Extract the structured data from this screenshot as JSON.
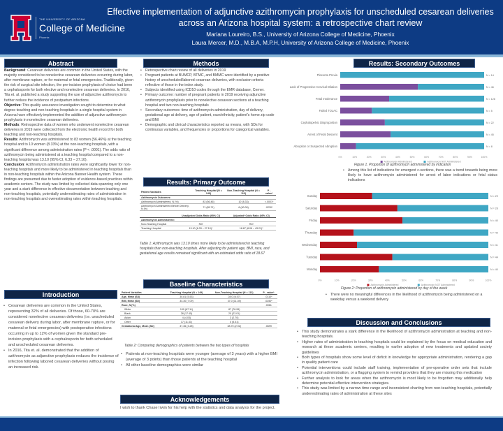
{
  "header": {
    "university": "THE UNIVERSITY OF ARIZONA",
    "college": "College of Medicine",
    "campus": "Phoenix",
    "title": "Effective implementation of adjunctive azithromycin prophylaxis for unscheduled cesarean deliveries across an Arizona hospital system: a retrospective chart review",
    "author1": "Mariana Loureiro, B.S., University of Arizona College of Medicine, Phoenix",
    "author2": "Laura Mercer, M.D., M.B.A, M.P.H, University of Arizona College of Medicine, Phoenix"
  },
  "abstract": {
    "heading": "Abstract",
    "background_label": "Background",
    "background": ": Cesarean deliveries are common in the United States, with the majority considered to be nonelective cesarean deliveries occurring during labor, after membrane rupture, or for maternal or fetal emergencies. Traditionally, given the risk of surgical site infection, the pre-incision prophylaxis of choice had been a cephalosporin for both elective and nonelective cesarean deliveries. In 2016, Tita et. al. published a study supporting the use of adjunctive azithromycin to further reduce the incidence of postpartum infections.",
    "objective_label": "Objective",
    "objective": ": This quality assurance investigation sought to determine to what degree teaching and non-teaching hospitals in a single hospital system in Arizona have effectively implemented the addition of adjunctive azithromycin prophylaxis in nonelective cesarean deliveries.",
    "methods_label": "Methods",
    "methods": ": Retrospective data of women who underwent nonelective cesarean deliveries in 2019 were collected from the electronic health record for both teaching and non-teaching hospitals.",
    "results_label": "Results",
    "results": ": Azithromycin was administered to 83 women (56.46%) at the teaching hospital and to 10 women (8.33%) at the non-teaching hospitals, with a significant difference among administration rates (P < .0001). The odds ratio of azithromycin being administered at a teaching hospital compared to a non-teaching hospital was 13.10 (95% CI, 6.33 – 27.10).",
    "conclusion_label": "Conclusion",
    "conclusion": ": Azithromycin administration rates were significantly lower for non-teaching hospitals and more likely to be administered in teaching hospitals than in non-teaching hospitals within the Arizona Banner Health system. These findings are presumed due to faster adoption of evidence-based practices within academic centers. The study was limited by collected data spanning only one year and a stark difference in effective documentation between teaching and non-teaching hospitals, potentially underestimating rates of administration in non-teaching hospitals and overestimating rates within teaching hospitals."
  },
  "introduction": {
    "heading": "Introduction",
    "bullets": [
      "Cesarean deliveries are common in the United States, representing 32% of all deliveries. Of those, 60-70% are considered nonelective cesarean deliveries (i.e. unscheduled cesarean delivery during labor, after membrane rupture, or for maternal or fetal emergencies) with postoperative infections occurring in up to 12% of women given the standard pre-incision prophylaxis with a cephalosporin for both scheduled and unscheduled cesarean deliveries.",
      "In 2016, Tita et. al. demonstrated that the addition of azithromycin as adjunctive prophylaxis reduces the incidence of infection following labored cesarean deliveries without posing an increased risk."
    ]
  },
  "methods": {
    "heading": "Methods",
    "bullets": [
      "Retrospective chart review of all deliveries in 2019",
      "Pregnant patients at BUMCP, BTMC, and BMMC were identified by a positive history of unscheduled/labored cesarean deliveries, with exclusion criteria reflective of those in the index study.",
      "Subjects identified using ICD10 codes through the EMR database, Cerner.",
      "Primary outcome: number of pregnant patients in 2019 receiving adjunctive azithromycin prophylaxis prior to nonelective cesarean sections at a teaching hospital and two non-teaching hospitals",
      "Secondary outcomes: time of azithromycin administration, day of delivery, gestational age at delivery, age of patient, race/ethnicity, patient's home zip code and BMI",
      "Demographic and clinical characteristics reported as means, with SDs for continuous variables, and frequencies or proportions for categorical variables."
    ]
  },
  "primary": {
    "heading": "Results: Primary Outcome",
    "table1": {
      "headers": [
        "Patient Variables",
        "Teaching Hospital (N = 149)",
        "Non-Teaching Hospital (N = 113)",
        "P - value*"
      ],
      "section": "Azithromycin Outcomes:",
      "rows": [
        [
          "Azithromycin Administered, N (%)",
          "83 (56.46)",
          "10 (8.33)",
          "<.0001*"
        ],
        [
          "Azithromycin Administered Before Delivery, N (%)",
          "71 (85.71)",
          "6 (60.00)",
          ".0230*"
        ]
      ]
    },
    "table2": {
      "headers": [
        "",
        "Unadjusted Odds Ratio (95% CI)",
        "Adjusted* Odds Ratio (95% CI)"
      ],
      "section": "Azithromycin Administered:",
      "rows": [
        [
          "Non-Teaching Hospital",
          "Ref",
          "Ref"
        ],
        [
          "Teaching Hospital",
          "13.10 (6.33 – 27.10)*",
          "18.67 (8.06 – 43.21)*"
        ]
      ]
    },
    "caption": "Table 1: Azithromycin was 13.10 times more likely to be administered in teaching hospitals than non-teaching hospitals. After adjusting for patient age, BMI, race, and gestational age results remained significant with an estimated odds ratio of 18.67"
  },
  "baseline": {
    "heading": "Baseline Characteristics",
    "headers": [
      "Patient Variables",
      "Teaching Hospital (N = 149)",
      "Non-Teaching Hospital (N = 113)",
      "P - value*"
    ],
    "rows": [
      [
        "Age, Mean (SD)",
        "30.81 (5.53)",
        "28.0 (6.07)",
        ".0110*",
        true
      ],
      [
        "BMI, Mean (SD)",
        "34.30 (7.09)",
        "37.0 (11.39)",
        ".0250*",
        true
      ],
      [
        "Race, N (%)",
        "",
        "",
        ".0061",
        true
      ],
      [
        "White",
        "100 (67.11)",
        "87 (76.99)",
        "",
        false
      ],
      [
        "Black",
        "28 (17.45)",
        "20 (23.01)",
        "",
        false
      ],
      [
        "Asian",
        "4 (4.03)",
        "3 (2.70)",
        "",
        false
      ],
      [
        "Other",
        "17 (11.41)",
        "4 (5.41)",
        "",
        false
      ],
      [
        "Gestational Age, Mean (SD)",
        "37.36 (3.28)",
        "38.70 (2.92)",
        ".0699",
        true
      ]
    ],
    "caption": "Table 2: Comparing demographics of patients between the two types of hospitals",
    "bullets": [
      "Patients at non-teaching hospitals were younger (average of 3 years) with a higher BMI (average of 3 points) than those patients at the teaching hospital",
      "All other baseline demographics were similar"
    ]
  },
  "acknowledgements": {
    "heading": "Acknowledgements",
    "text": "I wish to thank Chase Irwin for his help with the statistics and data analysis for the project."
  },
  "secondary": {
    "heading": "Results: Secondary Outcomes",
    "caption1": "Figure 1. Proportion of azithromycin administered by indication",
    "bullet1": "Among this list of indications for emergent c-sections, there was a trend towards being more likely to have azithromycin administered for arrest of labor indications or fetal status indications",
    "caption2": "Figure 2: Proportion of azithromycin administered by day of the week",
    "bullet2": "There were no meaningful differences in the likelihood of azithromycin being administered on a weekday versus a weekend delivery"
  },
  "discussion": {
    "heading": "Discussion and Conclusions",
    "bullets": [
      "This study demonstrates a stark difference in the likelihood of azithromycin administration at teaching and non-teaching hospitals.",
      "Higher rates of administration in teaching hospitals could be explained by the focus on medical education and research at these academic centers, resulting in earlier adoption of new treatments and updated society guidelines",
      "Both types of hospitals show some level of deficit in knowledge for appropriate administration, rendering a gap in quality patient care",
      "Potential interventions could include staff training, implementation of pre-operative order sets that include azithromycin administration, or a flagging system to remind providers that they are missing this medication",
      "Further analysis to look for areas when the azithromycin is most likely to be forgotten may additionally help determine potential effective intervention strategies.",
      "This study was limited by a narrow time range and inconsistent charting from non-teaching hospitals, potentially underestimating rates of administration at these sites"
    ]
  },
  "chart_data": [
    {
      "type": "bar",
      "orientation": "horizontal-stacked-100",
      "categories": [
        "Placenta Previa",
        "Lack of Progressive Cervical Dilation",
        "Fetal Intolerance",
        "Failed TOLAC",
        "Cephalopelvic Disproportion",
        "Arrest of Fetal Descent",
        "Abruption or Suspected Abruption"
      ],
      "n_labels": [
        "N = 14",
        "N = 46",
        "N = 128",
        "N = 5",
        "N = 22",
        "N = 45",
        "N = 8"
      ],
      "series": [
        {
          "name": "Azithromycin Administered",
          "values": [
            0,
            54,
            34,
            22,
            31,
            35,
            11
          ],
          "color": "#7b4f9e"
        },
        {
          "name": "Azithromycin NOT Administered",
          "values": [
            100,
            46,
            66,
            78,
            69,
            65,
            89
          ],
          "color": "#3fa7c4"
        }
      ],
      "xticks": [
        "0%",
        "10%",
        "20%",
        "30%",
        "40%",
        "50%",
        "60%",
        "70%",
        "80%",
        "90%",
        "100%"
      ],
      "xlim": [
        0,
        100
      ],
      "legend": "bottom"
    },
    {
      "type": "bar",
      "orientation": "horizontal-stacked-100",
      "categories": [
        "Sunday",
        "Saturday",
        "Friday",
        "Thursday",
        "Wednesday",
        "Tuesday",
        "Monday"
      ],
      "n_labels": [
        "N = 29",
        "N = 28",
        "N = 40",
        "N = 40",
        "N = 41",
        "N = 44",
        "N = 40"
      ],
      "series": [
        {
          "name": "Azithromycin Administered",
          "values": [
            31,
            46,
            49,
            20,
            22,
            43,
            35
          ],
          "color": "#b5121b"
        },
        {
          "name": "Azithromycin NOT Administered",
          "values": [
            69,
            54,
            51,
            80,
            78,
            57,
            65
          ],
          "color": "#3fa7c4"
        }
      ],
      "xticks": [
        "0%",
        "10%",
        "20%",
        "30%",
        "40%",
        "50%",
        "60%",
        "70%",
        "80%",
        "90%",
        "100%"
      ],
      "xlim": [
        0,
        100
      ],
      "legend": "bottom"
    }
  ]
}
